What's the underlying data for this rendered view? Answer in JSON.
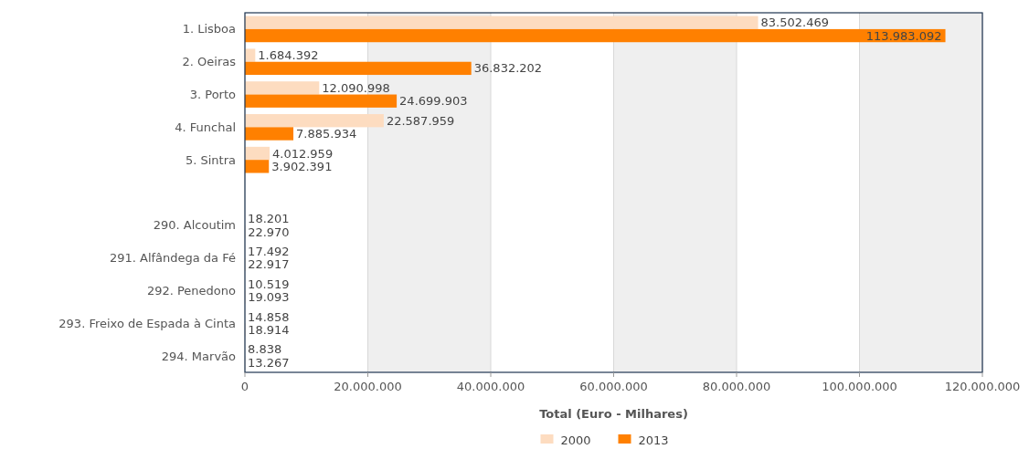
{
  "chart_data": {
    "type": "bar",
    "orientation": "horizontal",
    "xlabel": "Total (Euro - Milhares)",
    "categories": [
      "1. Lisboa",
      "2. Oeiras",
      "3. Porto",
      "4. Funchal",
      "5. Sintra",
      null,
      "290. Alcoutim",
      "291. Alfândega da Fé",
      "292. Penedono",
      "293. Freixo de Espada à Cinta",
      "294. Marvão"
    ],
    "series": [
      {
        "name": "2000",
        "color": "#fddcc0",
        "values": [
          83502469,
          1684392,
          12090998,
          22587959,
          4012959,
          null,
          18201,
          17492,
          10519,
          14858,
          8838
        ],
        "value_labels": [
          "83.502.469",
          "1.684.392",
          "12.090.998",
          "22.587.959",
          "4.012.959",
          null,
          "18.201",
          "17.492",
          "10.519",
          "14.858",
          "8.838"
        ]
      },
      {
        "name": "2013",
        "color": "#ff8000",
        "values": [
          113983092,
          36832202,
          24699903,
          7885934,
          3902391,
          null,
          22970,
          22917,
          19093,
          18914,
          13267
        ],
        "value_labels": [
          "113.983.092",
          "36.832.202",
          "24.699.903",
          "7.885.934",
          "3.902.391",
          null,
          "22.970",
          "22.917",
          "19.093",
          "18.914",
          "13.267"
        ]
      }
    ],
    "xlim": [
      0,
      120000000
    ],
    "xticks": [
      0,
      {
        "value": 20000000,
        "label": "20.000.000"
      },
      {
        "value": 40000000,
        "label": "40.000.000"
      },
      {
        "value": 60000000,
        "label": "60.000.000"
      },
      {
        "value": 80000000,
        "label": "80.000.000"
      },
      {
        "value": 100000000,
        "label": "100.000.000"
      },
      {
        "value": 120000000,
        "label": "120.000.000"
      }
    ],
    "bands": [
      {
        "axis": "x",
        "from": 20000000,
        "to": 40000000,
        "color": "#efefef"
      },
      {
        "axis": "x",
        "from": 60000000,
        "to": 80000000,
        "color": "#efefef"
      },
      {
        "axis": "x",
        "from": 100000000,
        "to": 120000000,
        "color": "#efefef"
      }
    ],
    "grid": "x",
    "legend": "bottom"
  }
}
